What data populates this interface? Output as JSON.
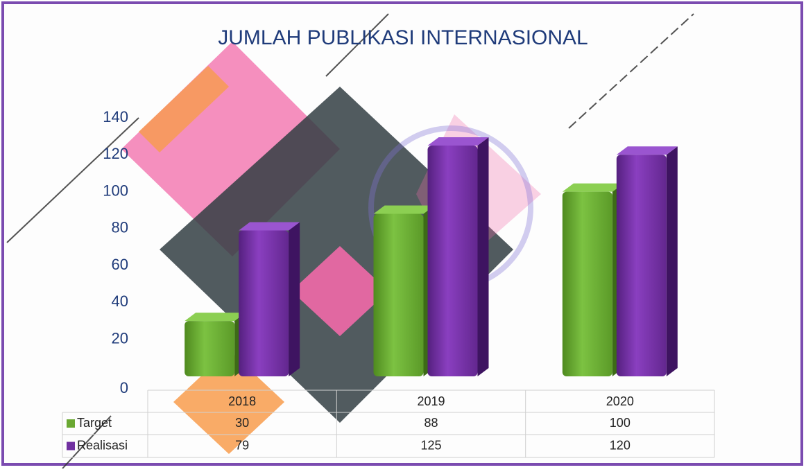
{
  "chart_data": {
    "type": "bar",
    "title": "JUMLAH PUBLIKASI INTERNASIONAL",
    "categories": [
      "2018",
      "2019",
      "2020"
    ],
    "series": [
      {
        "name": "Target",
        "color": "#6aa832",
        "values": [
          30,
          88,
          100
        ]
      },
      {
        "name": "Realisasi",
        "color": "#7030a0",
        "values": [
          79,
          125,
          120
        ]
      }
    ],
    "ylim": [
      0,
      140
    ],
    "yticks": [
      0,
      20,
      40,
      60,
      80,
      100,
      120,
      140
    ],
    "grid": false,
    "data_table": true
  }
}
